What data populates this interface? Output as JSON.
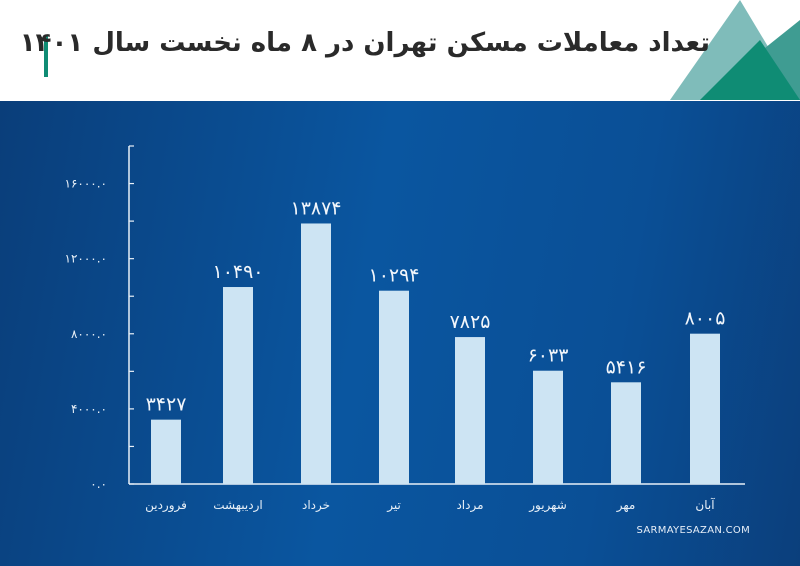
{
  "header": {
    "title": "تعداد معاملات مسکن تهران در ۸ ماه نخست سال ۱۴۰۱"
  },
  "footer": {
    "site": "SARMAYESAZAN.COM"
  },
  "colors": {
    "bar": "#cde4f3",
    "background": "#0a56a0",
    "accent": "#0f8c74"
  },
  "chart_data": {
    "type": "bar",
    "categories": [
      "فروردین",
      "اردیبهشت",
      "خرداد",
      "تیر",
      "مرداد",
      "شهریور",
      "مهر",
      "آبان"
    ],
    "values": [
      3427,
      10490,
      13874,
      10294,
      7825,
      6033,
      5416,
      8005
    ],
    "data_labels": [
      "۳۴۲۷",
      "۱۰۴۹۰",
      "۱۳۸۷۴",
      "۱۰۲۹۴",
      "۷۸۲۵",
      "۶۰۳۳",
      "۵۴۱۶",
      "۸۰۰۵"
    ],
    "yticks": [
      0,
      4000,
      8000,
      12000,
      16000
    ],
    "ytick_labels": [
      "۰.۰",
      "۴۰۰۰.۰",
      "۸۰۰۰.۰",
      "۱۲۰۰۰.۰",
      "۱۶۰۰۰.۰"
    ],
    "ylim": [
      0,
      18000
    ],
    "grid": false,
    "legend": "none"
  }
}
